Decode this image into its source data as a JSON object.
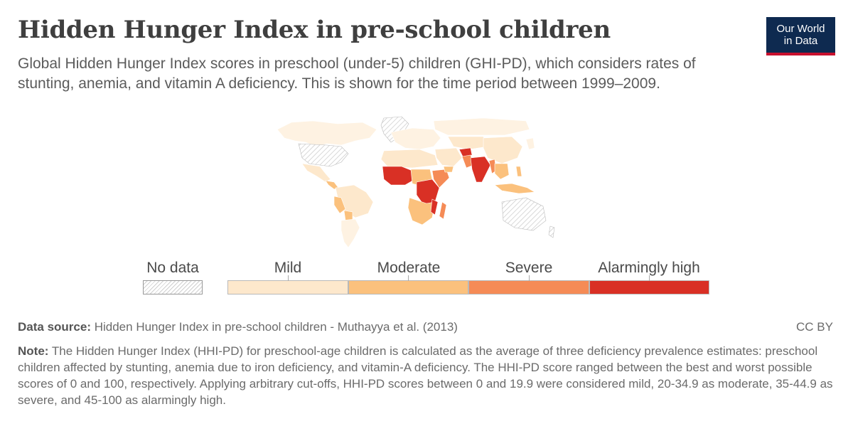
{
  "header": {
    "title": "Hidden Hunger Index in pre-school children",
    "subtitle": "Global Hidden Hunger Index scores in preschool (under-5) children (GHI-PD), which considers rates of stunting, anemia, and vitamin A deficiency. This is shown for the time period between 1999–2009."
  },
  "logo": {
    "line1": "Our World",
    "line2": "in Data"
  },
  "map": {
    "type": "choropleth",
    "colors": {
      "mild": "#fde8cc",
      "moderate": "#fbc17d",
      "severe": "#f58b56",
      "alarmingly_high": "#d93025",
      "no_data": "#e6e6e6",
      "low_shade": "#fef2e2"
    }
  },
  "legend": {
    "no_data": "No data",
    "categories": [
      {
        "label": "Mild",
        "color": "#fde8cc"
      },
      {
        "label": "Moderate",
        "color": "#fbc17d"
      },
      {
        "label": "Severe",
        "color": "#f58b56"
      },
      {
        "label": "Alarmingly high",
        "color": "#d93025"
      }
    ]
  },
  "footer": {
    "source_label": "Data source:",
    "source_text": "Hidden Hunger Index in pre-school children - Muthayya et al. (2013)",
    "license": "CC BY",
    "note_label": "Note:",
    "note_text": "The Hidden Hunger Index (HHI-PD) for preschool-age children is calculated as the average of three deficiency prevalence estimates: preschool children affected by stunting, anemia due to iron deficiency, and vitamin-A deficiency. The HHI-PD score ranged between the best and worst possible scores of 0 and 100, respectively. Applying arbitrary cut-offs, HHI-PD scores between 0 and 19.9 were considered mild, 20-34.9 as moderate, 35-44.9 as severe, and 45-100 as alarmingly high."
  }
}
